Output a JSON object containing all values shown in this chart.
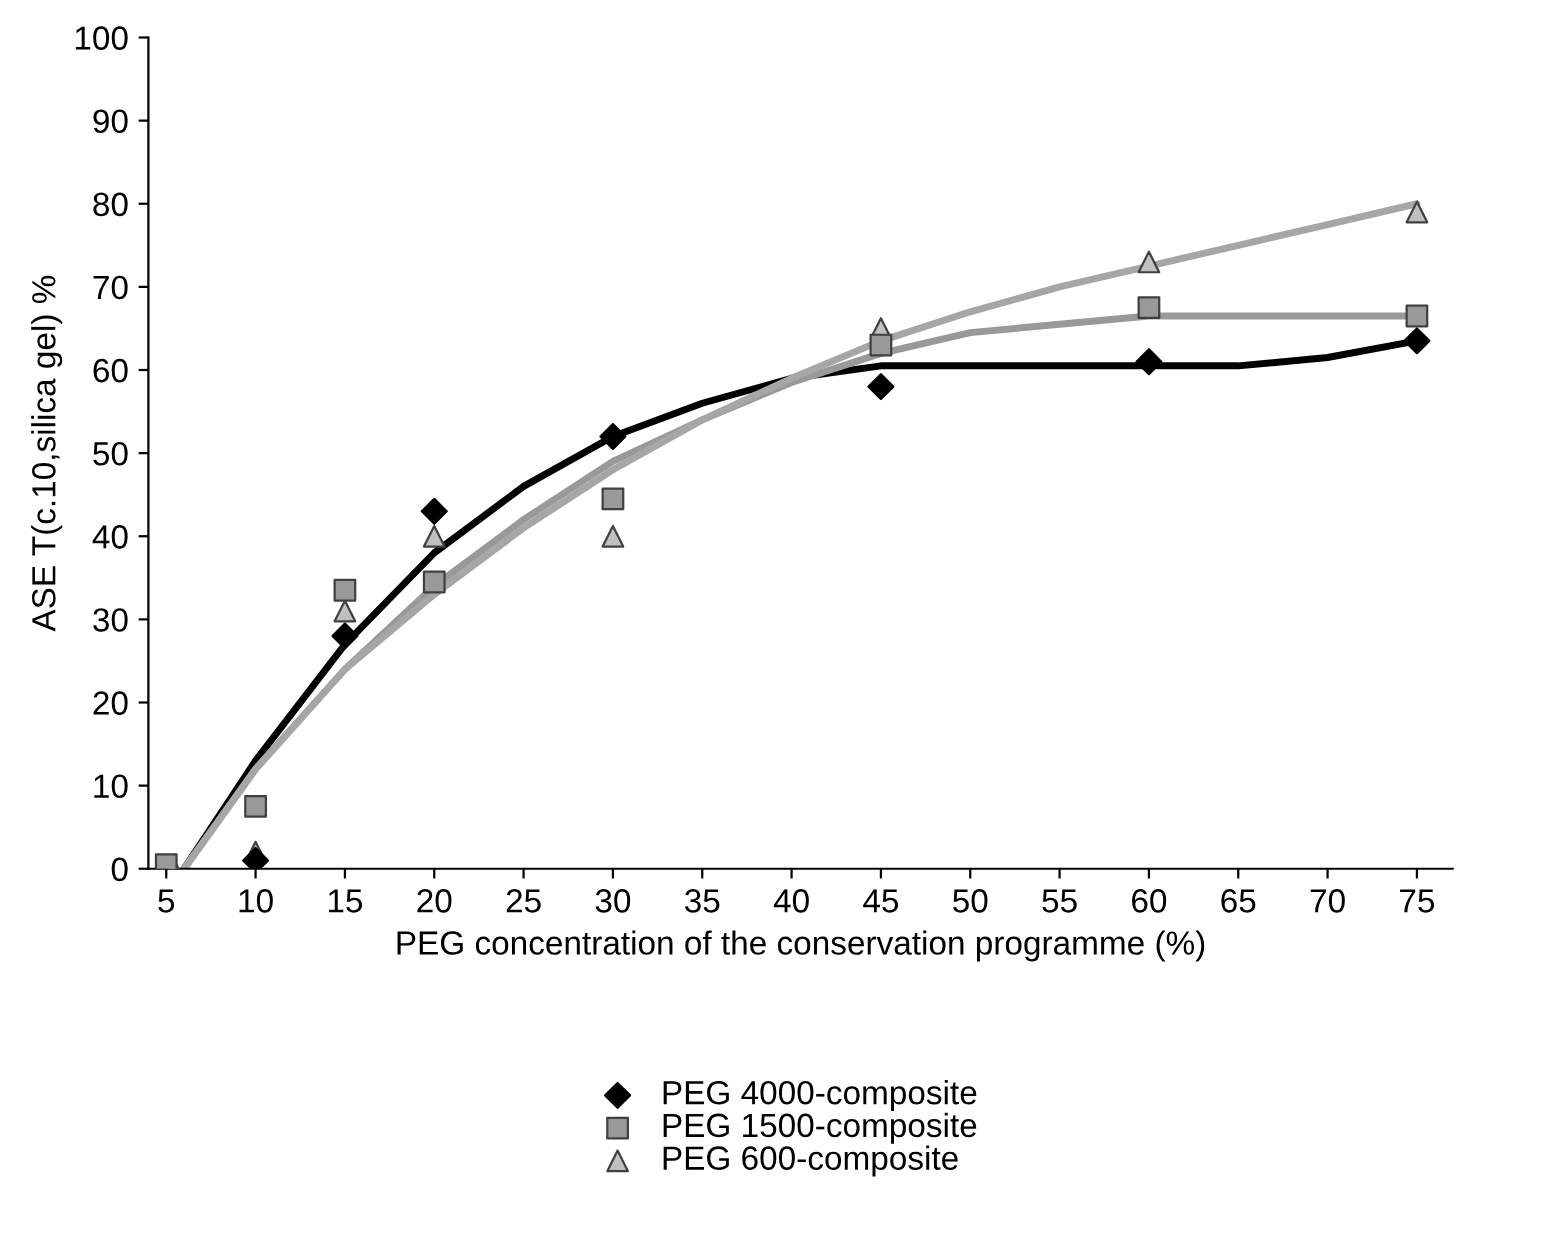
{
  "chart_data": {
    "type": "scatter",
    "xlabel": "PEG concentration of the conservation programme (%)",
    "ylabel": "ASE T(c.10,silica gel) %",
    "xlim": [
      4,
      77
    ],
    "xticks": [
      5,
      10,
      15,
      20,
      25,
      30,
      35,
      40,
      45,
      50,
      55,
      60,
      65,
      70,
      75
    ],
    "ylim": [
      0,
      100
    ],
    "yticks": [
      0,
      10,
      20,
      30,
      40,
      50,
      60,
      70,
      80,
      90,
      100
    ],
    "grid": false,
    "legend": "bottom",
    "series": [
      {
        "name": "PEG 4000-composite",
        "color": "#000000",
        "marker": "diamond",
        "x": [
          10,
          15,
          20,
          30,
          45,
          60,
          75
        ],
        "values": [
          1,
          28,
          43,
          52,
          58,
          61,
          63.5
        ]
      },
      {
        "name": "PEG 1500-composite",
        "color": "#999999",
        "marker": "square",
        "x": [
          5,
          10,
          15,
          20,
          30,
          45,
          60,
          75
        ],
        "values": [
          0.5,
          7.5,
          33.5,
          34.5,
          44.5,
          63,
          67.5,
          66.5
        ]
      },
      {
        "name": "PEG 600-composite",
        "color": "#c0c0c0",
        "marker": "triangle",
        "x": [
          5.4,
          10,
          15,
          20,
          30,
          45,
          60,
          75
        ],
        "values": [
          0,
          2,
          31,
          40,
          40,
          65,
          73,
          79
        ]
      },
      {
        "type": "line",
        "color": "#000000",
        "marker": "none",
        "x": [
          6,
          10,
          15,
          20,
          25,
          30,
          35,
          40,
          45,
          50,
          55,
          60,
          65,
          70,
          75
        ],
        "values": [
          0,
          13,
          27,
          38,
          46,
          52,
          56,
          59,
          60.5,
          60.5,
          60.5,
          60.5,
          60.5,
          61.5,
          63.5
        ]
      },
      {
        "type": "line",
        "color": "#999999",
        "marker": "none",
        "x": [
          6,
          10,
          15,
          20,
          25,
          30,
          35,
          40,
          45,
          50,
          55,
          60,
          65,
          70,
          75
        ],
        "values": [
          0,
          12,
          24,
          34,
          42,
          49,
          54,
          58.5,
          62,
          64.5,
          65.5,
          66.5,
          66.5,
          66.5,
          66.5
        ]
      },
      {
        "type": "line",
        "color": "#a6a6a6",
        "marker": "none",
        "x": [
          6,
          10,
          15,
          20,
          25,
          30,
          35,
          40,
          45,
          50,
          55,
          60,
          65,
          70,
          75
        ],
        "values": [
          0,
          12,
          24,
          33,
          41,
          48,
          54,
          59,
          63.5,
          67,
          70,
          72.5,
          75,
          77.5,
          80
        ]
      }
    ]
  }
}
